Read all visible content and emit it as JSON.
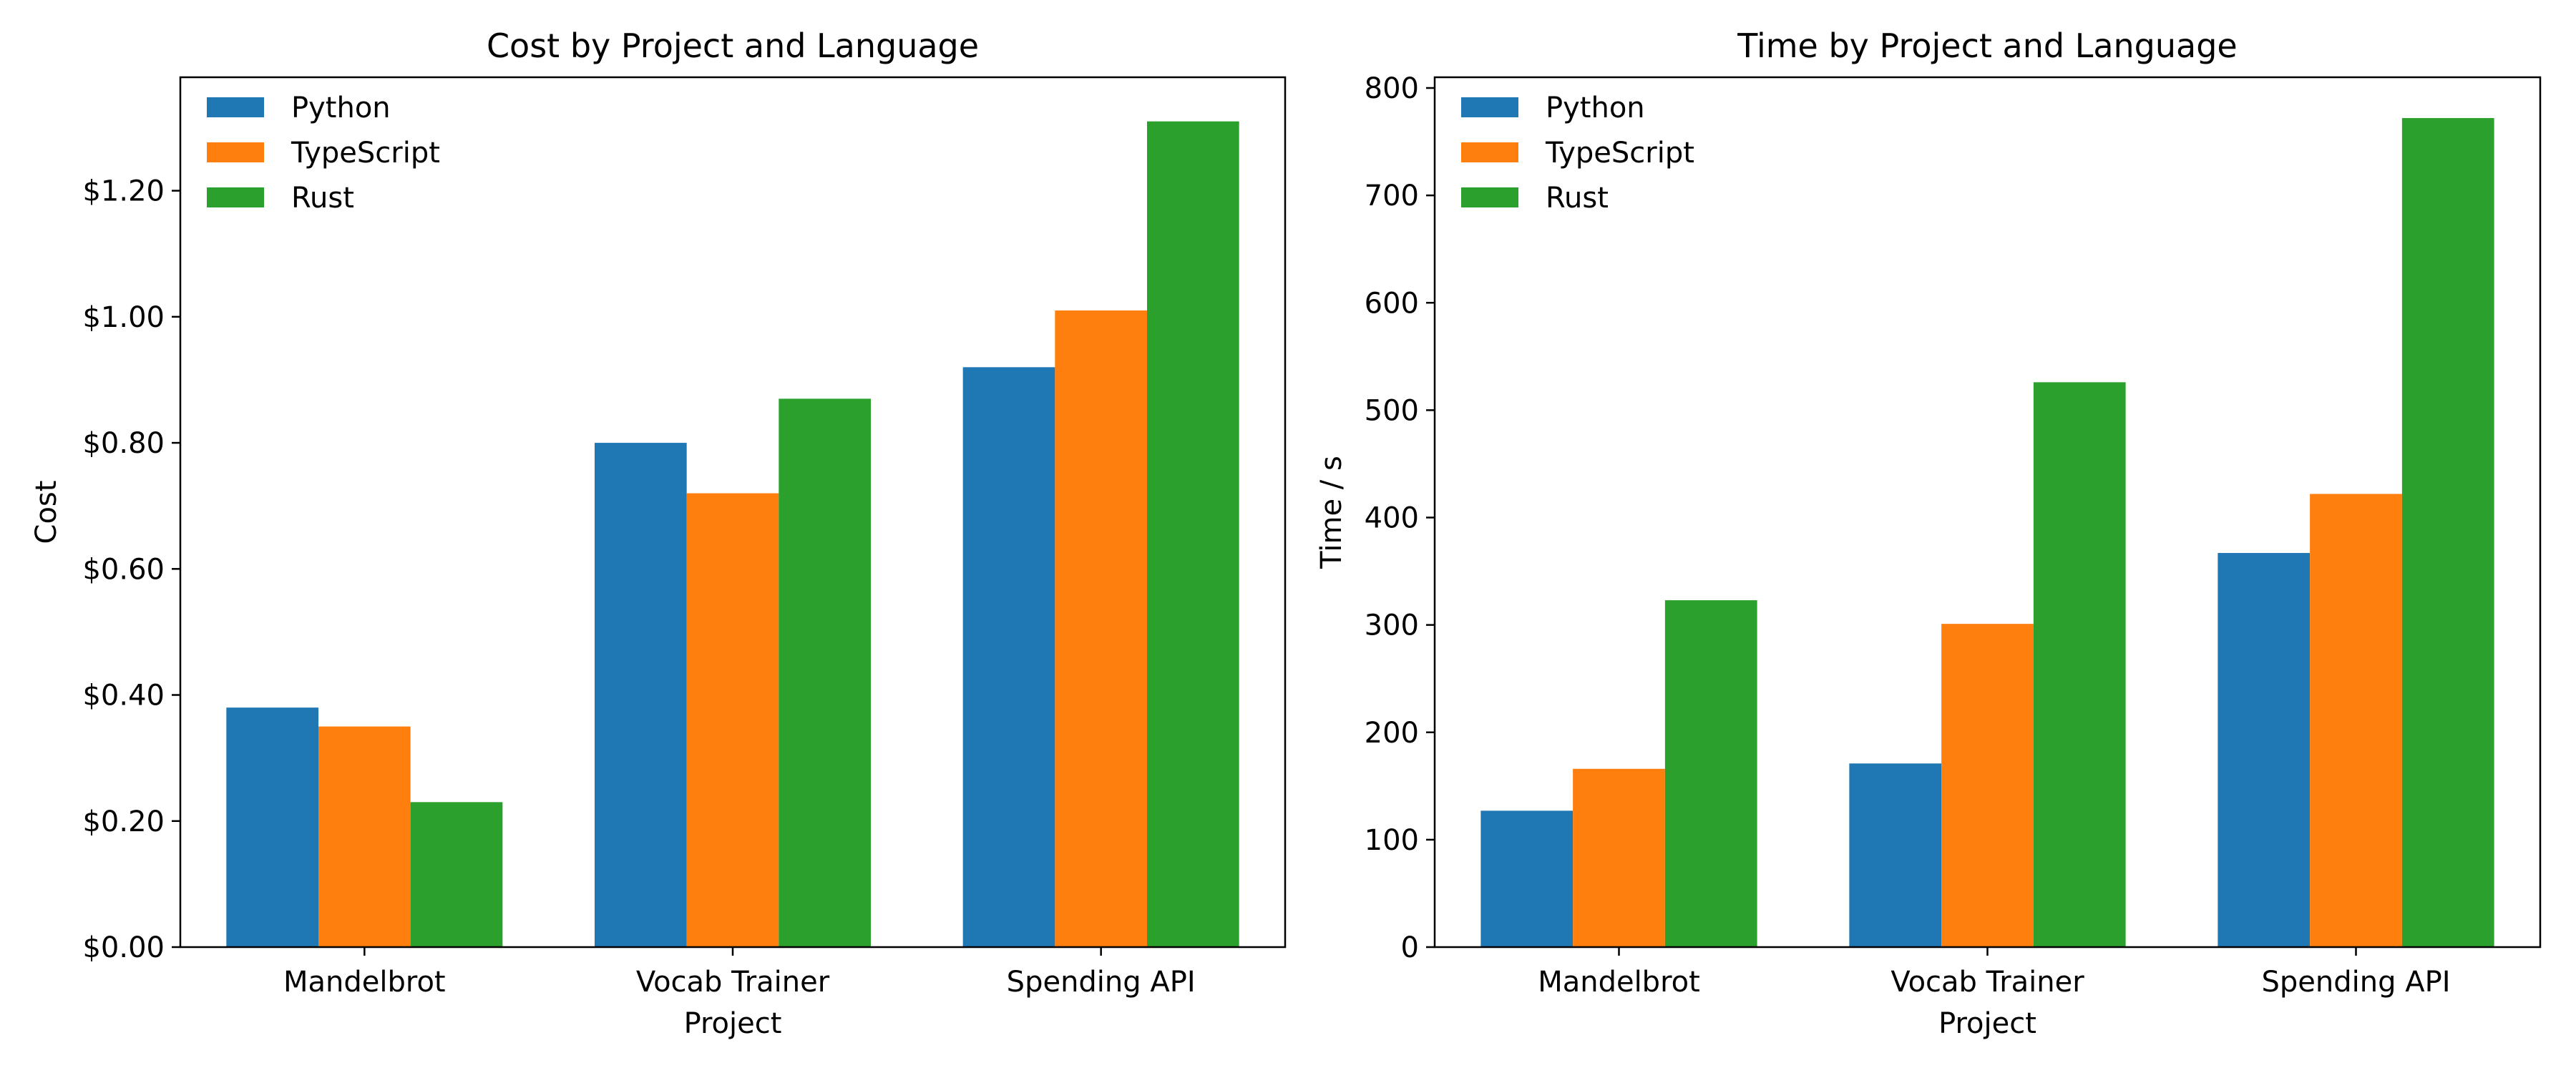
{
  "chart_data": [
    {
      "type": "bar",
      "title": "Cost by Project and Language",
      "xlabel": "Project",
      "ylabel": "Cost",
      "categories": [
        "Mandelbrot",
        "Vocab Trainer",
        "Spending API"
      ],
      "series": [
        {
          "name": "Python",
          "color": "#1f77b4",
          "values": [
            0.38,
            0.8,
            0.92
          ]
        },
        {
          "name": "TypeScript",
          "color": "#ff7f0e",
          "values": [
            0.35,
            0.72,
            1.01
          ]
        },
        {
          "name": "Rust",
          "color": "#2ca02c",
          "values": [
            0.23,
            0.87,
            1.31
          ]
        }
      ],
      "ylim": [
        0,
        1.38
      ],
      "yticks": [
        0,
        0.2,
        0.4,
        0.6,
        0.8,
        1.0,
        1.2
      ],
      "ytick_labels": [
        "$0.00",
        "$0.20",
        "$0.40",
        "$0.60",
        "$0.80",
        "$1.00",
        "$1.20"
      ],
      "grid": false,
      "legend_position": "top-left"
    },
    {
      "type": "bar",
      "title": "Time by Project and Language",
      "xlabel": "Project",
      "ylabel": "Time / s",
      "categories": [
        "Mandelbrot",
        "Vocab Trainer",
        "Spending API"
      ],
      "series": [
        {
          "name": "Python",
          "color": "#1f77b4",
          "values": [
            127,
            171,
            367
          ]
        },
        {
          "name": "TypeScript",
          "color": "#ff7f0e",
          "values": [
            166,
            301,
            422
          ]
        },
        {
          "name": "Rust",
          "color": "#2ca02c",
          "values": [
            323,
            526,
            772
          ]
        }
      ],
      "ylim": [
        0,
        810
      ],
      "yticks": [
        0,
        100,
        200,
        300,
        400,
        500,
        600,
        700,
        800
      ],
      "ytick_labels": [
        "0",
        "100",
        "200",
        "300",
        "400",
        "500",
        "600",
        "700",
        "800"
      ],
      "grid": false,
      "legend_position": "top-left"
    }
  ]
}
